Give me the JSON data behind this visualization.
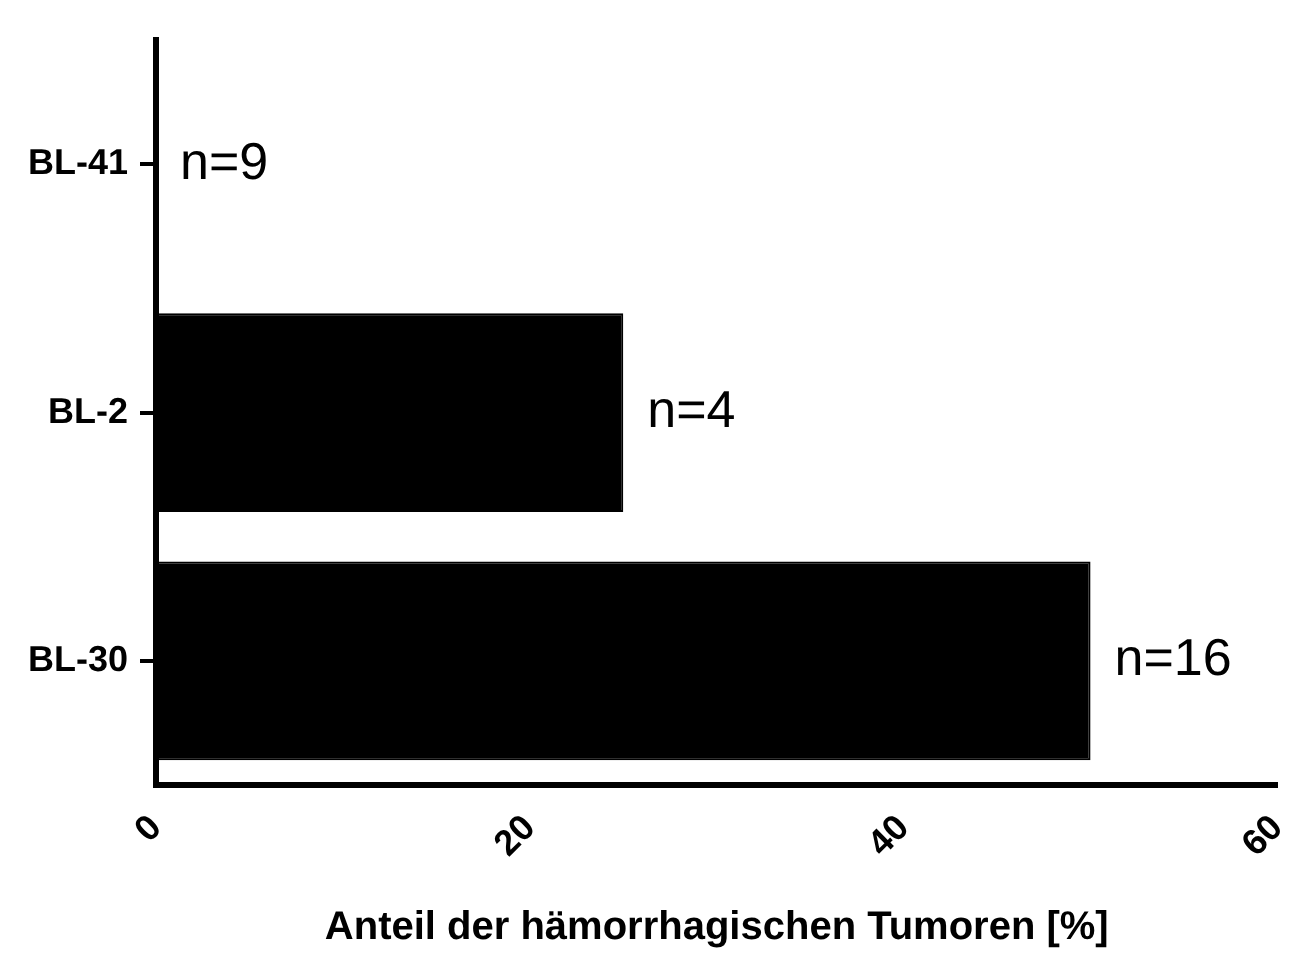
{
  "chart_data": {
    "type": "bar",
    "orientation": "horizontal",
    "xlabel": "Anteil der hämorrhagischen Tumoren [%]",
    "categories": [
      "BL-41",
      "BL-2",
      "BL-30"
    ],
    "values": [
      0,
      25,
      50
    ],
    "color": "#000000",
    "annotations": [
      {
        "text": "n=9",
        "x": 0,
        "y": "BL-41"
      },
      {
        "text": "n=4",
        "x": 25,
        "y": "BL-2"
      },
      {
        "text": "n=16",
        "x": 50,
        "y": "BL-30"
      }
    ],
    "xlim": [
      0,
      60
    ],
    "xticks": [
      0,
      20,
      40,
      60
    ],
    "grid": false,
    "legend": false
  }
}
